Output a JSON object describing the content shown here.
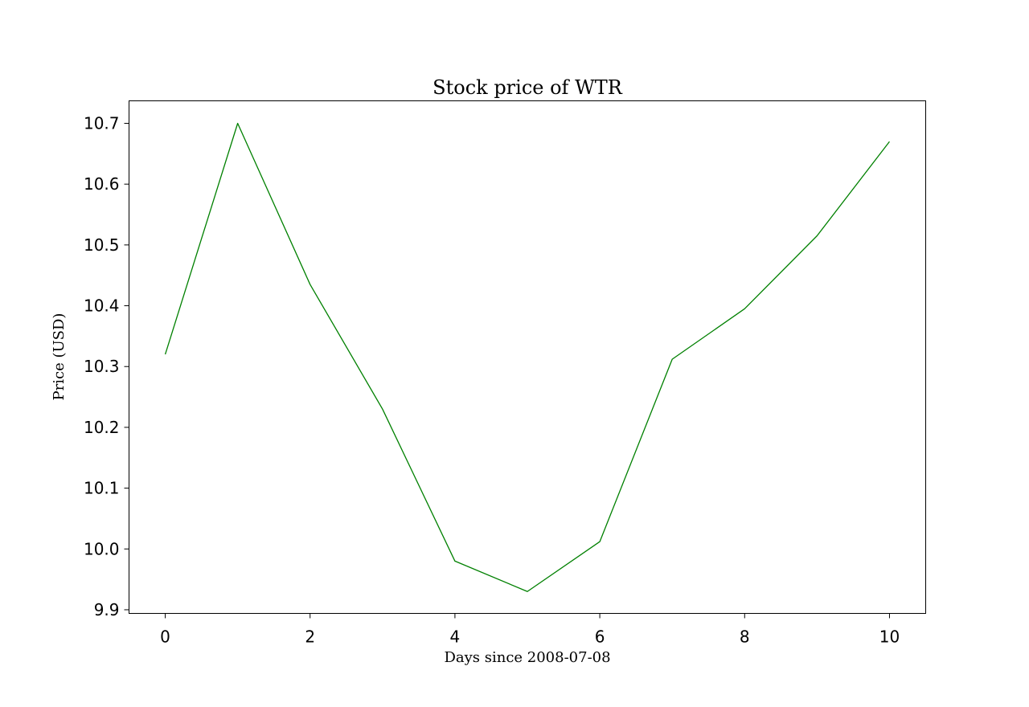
{
  "chart_data": {
    "type": "line",
    "title": "Stock price of WTR",
    "xlabel": "Days since 2008-07-08",
    "ylabel": "Price (USD)",
    "x": [
      0,
      1,
      2,
      3,
      4,
      5,
      6,
      7,
      8,
      9,
      10
    ],
    "series": [
      {
        "values": [
          10.32,
          10.7,
          10.435,
          10.23,
          9.98,
          9.93,
          10.012,
          10.312,
          10.395,
          10.515,
          10.67
        ],
        "color": "#008000"
      }
    ],
    "xlim": [
      -0.5,
      10.5
    ],
    "ylim": [
      9.894,
      10.737
    ],
    "xticks": [
      0,
      2,
      4,
      6,
      8,
      10
    ],
    "xtick_labels": [
      "0",
      "2",
      "4",
      "6",
      "8",
      "10"
    ],
    "yticks": [
      9.9,
      10.0,
      10.1,
      10.2,
      10.3,
      10.4,
      10.5,
      10.6,
      10.7
    ],
    "ytick_labels": [
      "9.9",
      "10.0",
      "10.1",
      "10.2",
      "10.3",
      "10.4",
      "10.5",
      "10.6",
      "10.7"
    ],
    "grid": false,
    "legend": "none"
  }
}
